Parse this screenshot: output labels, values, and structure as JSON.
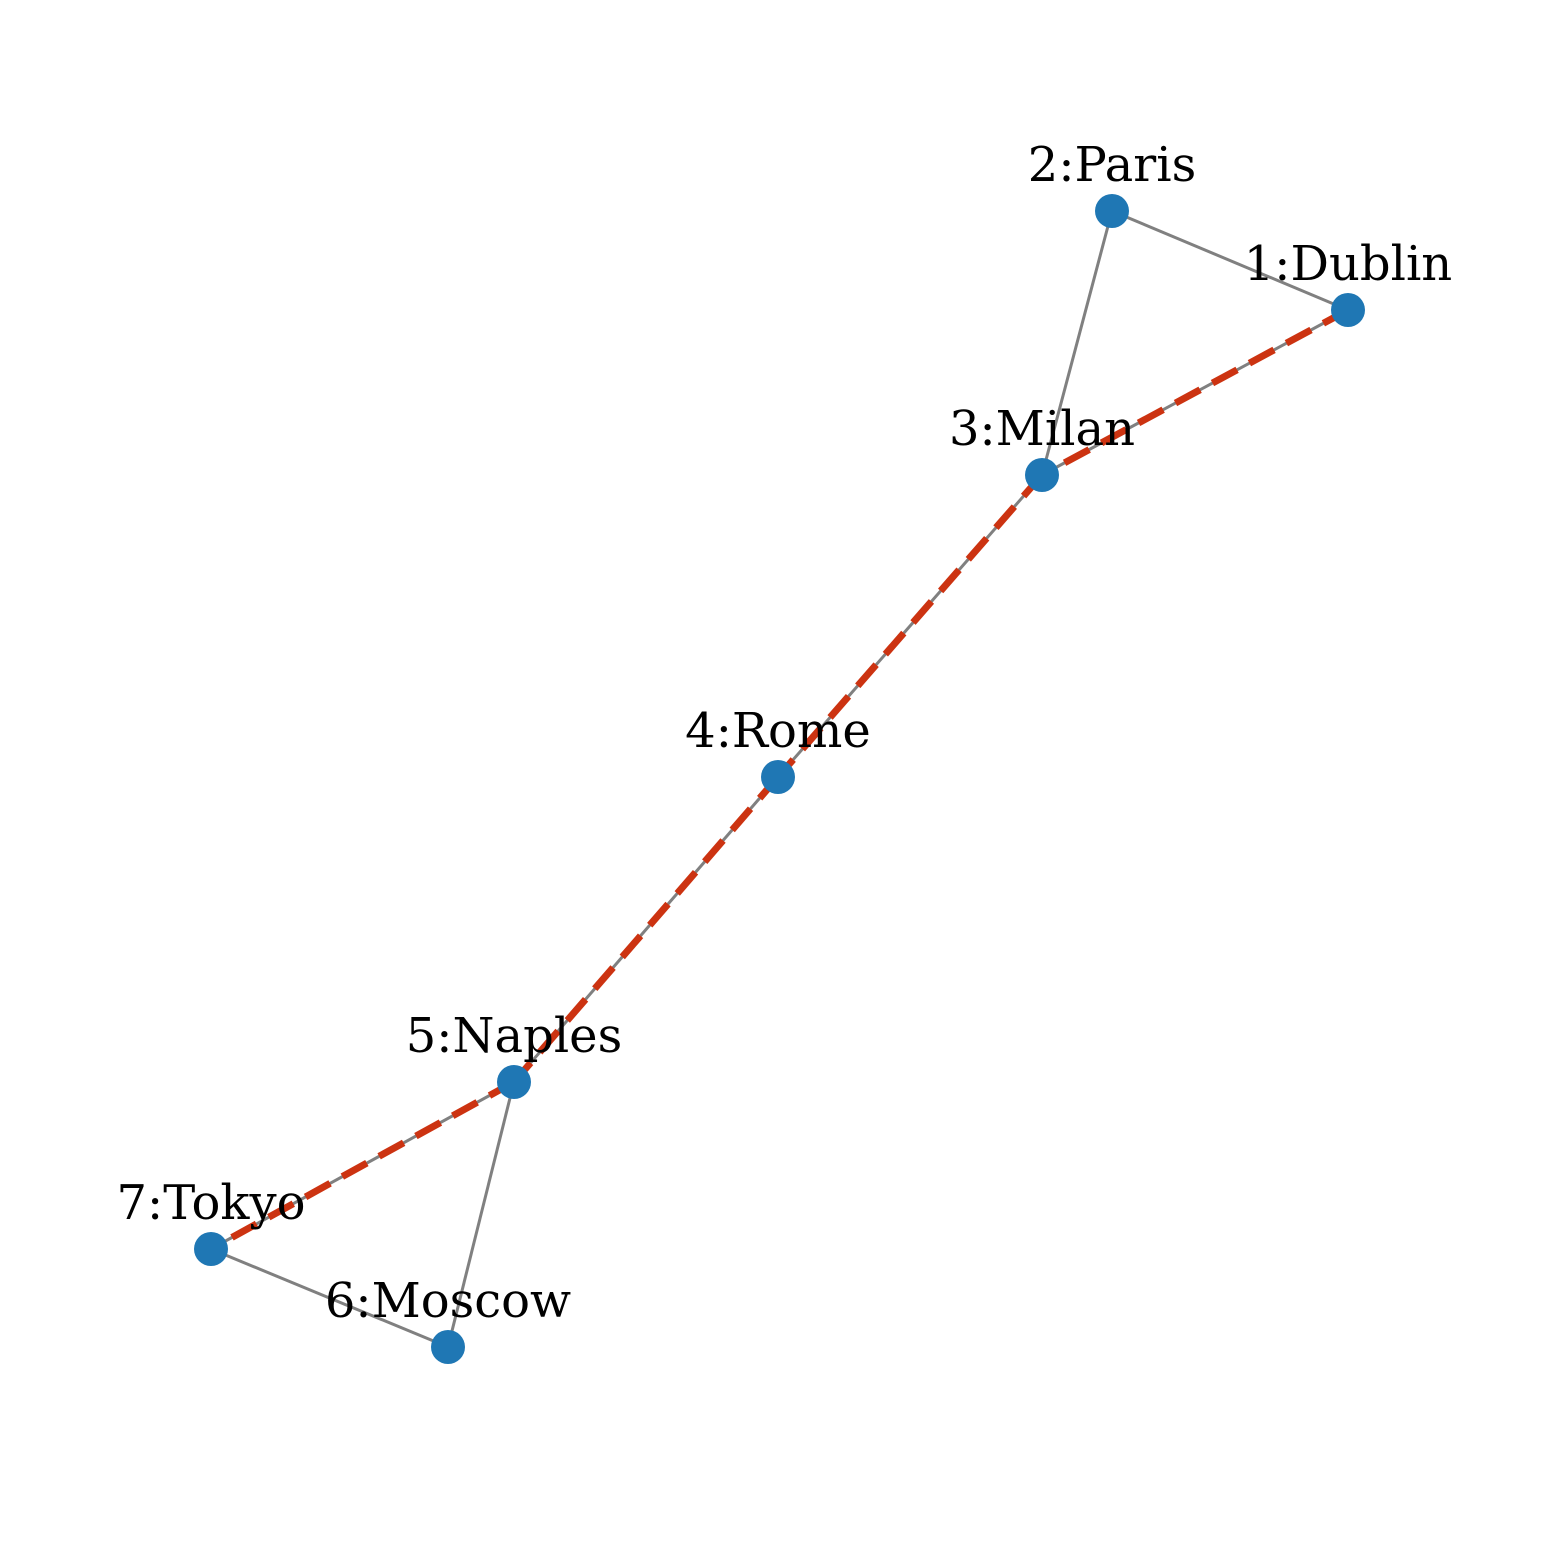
{
  "graph": {
    "nodes": [
      {
        "id": "1",
        "label": "1:Dublin"
      },
      {
        "id": "2",
        "label": "2:Paris"
      },
      {
        "id": "3",
        "label": "3:Milan"
      },
      {
        "id": "4",
        "label": "4:Rome"
      },
      {
        "id": "5",
        "label": "5:Naples"
      },
      {
        "id": "6",
        "label": "6:Moscow"
      },
      {
        "id": "7",
        "label": "7:Tokyo"
      }
    ],
    "edges": [
      [
        "1",
        "2"
      ],
      [
        "2",
        "3"
      ],
      [
        "1",
        "3"
      ],
      [
        "3",
        "4"
      ],
      [
        "4",
        "5"
      ],
      [
        "5",
        "6"
      ],
      [
        "6",
        "7"
      ],
      [
        "5",
        "7"
      ]
    ],
    "highlighted_path": [
      "1",
      "3",
      "4",
      "5",
      "7"
    ],
    "colors": {
      "node": "#1f77b4",
      "edge": "#808080",
      "highlighted_path": "#cc3311"
    }
  }
}
